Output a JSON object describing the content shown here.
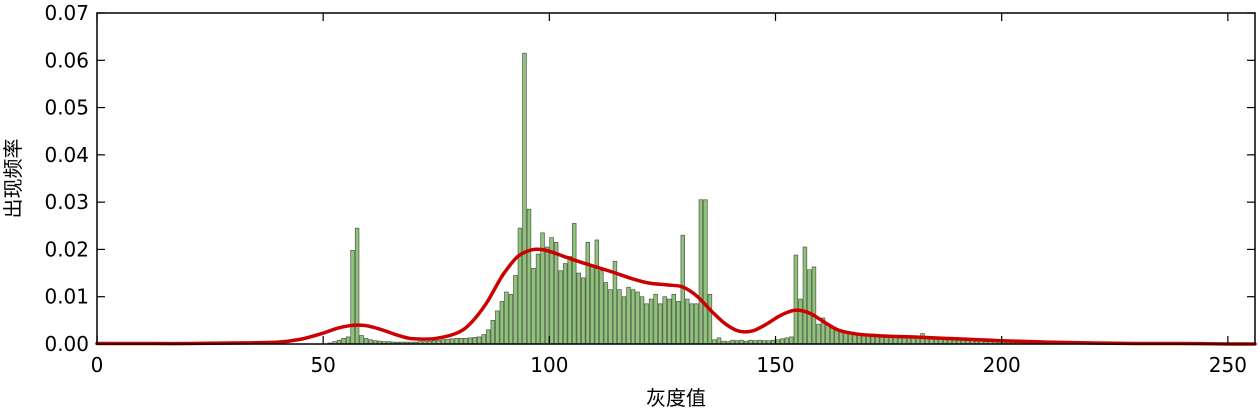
{
  "chart_data": {
    "type": "bar",
    "title": "",
    "xlabel": "灰度值",
    "ylabel": "出现频率",
    "xlim": [
      0,
      256
    ],
    "ylim": [
      0,
      0.07
    ],
    "xticks": [
      0,
      50,
      100,
      150,
      200,
      250
    ],
    "xtick_labels": [
      "0",
      "50",
      "100",
      "150",
      "200",
      "250"
    ],
    "yticks": [
      0.0,
      0.01,
      0.02,
      0.03,
      0.04,
      0.05,
      0.06,
      0.07
    ],
    "ytick_labels": [
      "0.00",
      "0.01",
      "0.02",
      "0.03",
      "0.04",
      "0.05",
      "0.06",
      "0.07"
    ],
    "grid": false,
    "bar_color": "#8fc27a",
    "bar_edge_color": "#4d5a44",
    "curve_color": "#cc0000",
    "histogram": {
      "x_start": 0,
      "bin_width": 1,
      "values": [
        0,
        0,
        0,
        0,
        0,
        0,
        0,
        0,
        0,
        0,
        0,
        0,
        0,
        0,
        0,
        0,
        0,
        0,
        0,
        0,
        0,
        0,
        0,
        0,
        0,
        0,
        0,
        0,
        0,
        0,
        0,
        0,
        0,
        0,
        0,
        0,
        0,
        0,
        0,
        0,
        0,
        0,
        0,
        0,
        0,
        0,
        0,
        0,
        0,
        0,
        0,
        0.0002,
        0.0005,
        0.0008,
        0.0012,
        0.0015,
        0.0198,
        0.0245,
        0.0018,
        0.0012,
        0.0009,
        0.0007,
        0.0006,
        0.0005,
        0.0005,
        0.0004,
        0.0004,
        0.0004,
        0.0004,
        0.0004,
        0.0004,
        0.0005,
        0.0005,
        0.0006,
        0.0007,
        0.0008,
        0.0009,
        0.001,
        0.0011,
        0.0012,
        0.0012,
        0.0012,
        0.0013,
        0.0014,
        0.0015,
        0.002,
        0.003,
        0.005,
        0.007,
        0.009,
        0.011,
        0.0105,
        0.0145,
        0.0245,
        0.0615,
        0.0285,
        0.016,
        0.019,
        0.0235,
        0.0205,
        0.0225,
        0.0215,
        0.0155,
        0.017,
        0.0185,
        0.0255,
        0.015,
        0.014,
        0.0215,
        0.0165,
        0.022,
        0.0155,
        0.013,
        0.0115,
        0.0175,
        0.0115,
        0.01,
        0.012,
        0.0115,
        0.011,
        0.01,
        0.0085,
        0.0095,
        0.0105,
        0.0085,
        0.01,
        0.0095,
        0.0105,
        0.009,
        0.023,
        0.0095,
        0.0085,
        0.0085,
        0.0305,
        0.0305,
        0.0105,
        0.0009,
        0.0013,
        0.0006,
        0.0005,
        0.0008,
        0.0007,
        0.0008,
        0.0006,
        0.0008,
        0.0007,
        0.0008,
        0.0007,
        0.0007,
        0.0008,
        0.0009,
        0.0011,
        0.0013,
        0.0015,
        0.0188,
        0.0095,
        0.0205,
        0.0157,
        0.0163,
        0.0042,
        0.0055,
        0.004,
        0.0035,
        0.003,
        0.0028,
        0.0025,
        0.0023,
        0.0022,
        0.0021,
        0.002,
        0.002,
        0.0019,
        0.0019,
        0.0019,
        0.0018,
        0.0018,
        0.0018,
        0.0018,
        0.0017,
        0.0016,
        0.0016,
        0.0015,
        0.0022,
        0.0015,
        0.0014,
        0.0013,
        0.0012,
        0.0011,
        0.001,
        0.0009,
        0.0008,
        0.0008,
        0.0007,
        0.0007,
        0.0006,
        0.0006,
        0.0005,
        0.0005,
        0.0005,
        0.0004,
        0.0004,
        0.0004,
        0.0004,
        0.0003,
        0.0003,
        0.0003,
        0.0003,
        0.0002,
        0.0002,
        0.0002,
        0.0002,
        0.0002,
        0.0001,
        0.0001,
        0.0001,
        0.0001,
        0.0001,
        0.0001,
        0.0001,
        0.0001,
        0,
        0,
        0,
        0,
        0,
        0,
        0,
        0,
        0,
        0,
        0,
        0,
        0,
        0,
        0,
        0,
        0,
        0,
        0,
        0,
        0,
        0,
        0,
        0,
        0,
        0,
        0,
        0,
        0,
        0,
        0,
        0,
        0,
        0,
        0,
        0,
        0,
        0,
        0,
        0
      ]
    },
    "kde_curve": {
      "x": [
        0,
        10,
        20,
        30,
        40,
        45,
        50,
        53,
        56,
        58,
        60,
        63,
        67,
        70,
        75,
        80,
        83,
        86,
        88,
        90,
        93,
        96,
        98,
        100,
        103,
        106,
        110,
        114,
        118,
        122,
        126,
        129,
        131,
        133,
        136,
        139,
        142,
        145,
        148,
        151,
        154,
        156,
        158,
        161,
        164,
        168,
        172,
        176,
        180,
        185,
        190,
        195,
        200,
        210,
        220,
        230,
        240,
        250,
        256
      ],
      "y": [
        0.0001,
        0.0001,
        0.0001,
        0.0002,
        0.0004,
        0.001,
        0.0023,
        0.0033,
        0.0039,
        0.004,
        0.0038,
        0.003,
        0.0017,
        0.0011,
        0.0012,
        0.0025,
        0.0048,
        0.0085,
        0.0118,
        0.015,
        0.0185,
        0.0199,
        0.02,
        0.0196,
        0.0186,
        0.0176,
        0.0164,
        0.0152,
        0.0139,
        0.0129,
        0.0125,
        0.0122,
        0.0113,
        0.0098,
        0.0068,
        0.0042,
        0.0027,
        0.0028,
        0.0042,
        0.006,
        0.0071,
        0.007,
        0.0063,
        0.0045,
        0.0029,
        0.0021,
        0.0018,
        0.0016,
        0.0015,
        0.0013,
        0.0011,
        0.0009,
        0.0007,
        0.0004,
        0.0002,
        0.0001,
        0.0001,
        0.0,
        0.0
      ]
    }
  }
}
